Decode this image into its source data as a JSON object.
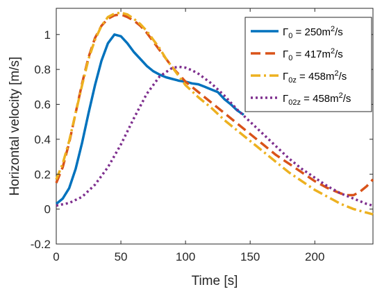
{
  "chart_data": {
    "type": "line",
    "title": "",
    "xlabel": "Time [s]",
    "ylabel": "Horizontal velocity [m/s]",
    "xlim": [
      0,
      245
    ],
    "ylim": [
      -0.2,
      1.15
    ],
    "xticks": [
      0,
      50,
      100,
      150,
      200
    ],
    "yticks": [
      -0.2,
      0,
      0.2,
      0.4,
      0.6,
      0.8,
      1
    ],
    "xtick_labels": [
      "0",
      "50",
      "100",
      "150",
      "200"
    ],
    "ytick_labels": [
      "-0.2",
      "0",
      "0.2",
      "0.4",
      "0.6",
      "0.8",
      "1"
    ],
    "grid": false,
    "legend_position": "top-right",
    "series": [
      {
        "name_parts": {
          "sym": "Γ",
          "sub": "0",
          "mid": " = 250m",
          "sup": "2",
          "end": "/s"
        },
        "color": "#0072BD",
        "style": "solid",
        "points": [
          [
            0,
            0.03
          ],
          [
            5,
            0.06
          ],
          [
            10,
            0.12
          ],
          [
            15,
            0.23
          ],
          [
            20,
            0.38
          ],
          [
            25,
            0.55
          ],
          [
            30,
            0.71
          ],
          [
            35,
            0.85
          ],
          [
            40,
            0.95
          ],
          [
            45,
            1.0
          ],
          [
            50,
            0.99
          ],
          [
            55,
            0.95
          ],
          [
            60,
            0.9
          ],
          [
            65,
            0.86
          ],
          [
            70,
            0.82
          ],
          [
            75,
            0.79
          ],
          [
            80,
            0.77
          ],
          [
            85,
            0.755
          ],
          [
            90,
            0.745
          ],
          [
            95,
            0.735
          ],
          [
            100,
            0.73
          ],
          [
            105,
            0.72
          ],
          [
            110,
            0.715
          ],
          [
            115,
            0.7
          ],
          [
            120,
            0.685
          ],
          [
            125,
            0.67
          ],
          [
            130,
            0.63
          ],
          [
            135,
            0.6
          ],
          [
            140,
            0.565
          ],
          [
            145,
            0.54
          ]
        ]
      },
      {
        "name_parts": {
          "sym": "Γ",
          "sub": "0",
          "mid": " = 417m",
          "sup": "2",
          "end": "/s"
        },
        "color": "#D95319",
        "style": "dash",
        "points": [
          [
            0,
            0.15
          ],
          [
            5,
            0.24
          ],
          [
            10,
            0.38
          ],
          [
            15,
            0.55
          ],
          [
            20,
            0.72
          ],
          [
            25,
            0.87
          ],
          [
            30,
            0.98
          ],
          [
            35,
            1.05
          ],
          [
            40,
            1.09
          ],
          [
            45,
            1.11
          ],
          [
            50,
            1.115
          ],
          [
            55,
            1.1
          ],
          [
            60,
            1.08
          ],
          [
            65,
            1.05
          ],
          [
            70,
            1.01
          ],
          [
            75,
            0.96
          ],
          [
            80,
            0.91
          ],
          [
            85,
            0.86
          ],
          [
            90,
            0.81
          ],
          [
            95,
            0.77
          ],
          [
            100,
            0.73
          ],
          [
            110,
            0.67
          ],
          [
            120,
            0.61
          ],
          [
            130,
            0.55
          ],
          [
            140,
            0.49
          ],
          [
            150,
            0.43
          ],
          [
            160,
            0.37
          ],
          [
            170,
            0.31
          ],
          [
            180,
            0.26
          ],
          [
            190,
            0.21
          ],
          [
            200,
            0.16
          ],
          [
            210,
            0.12
          ],
          [
            220,
            0.09
          ],
          [
            225,
            0.08
          ],
          [
            230,
            0.08
          ],
          [
            235,
            0.1
          ],
          [
            240,
            0.13
          ],
          [
            245,
            0.17
          ]
        ]
      },
      {
        "name_parts": {
          "sym": "Γ",
          "sub": "0z",
          "mid": " = 458m",
          "sup": "2",
          "end": "/s"
        },
        "color": "#EDB120",
        "style": "dashdot",
        "points": [
          [
            0,
            0.17
          ],
          [
            5,
            0.26
          ],
          [
            10,
            0.39
          ],
          [
            15,
            0.55
          ],
          [
            20,
            0.71
          ],
          [
            25,
            0.86
          ],
          [
            30,
            0.97
          ],
          [
            35,
            1.05
          ],
          [
            40,
            1.1
          ],
          [
            45,
            1.12
          ],
          [
            50,
            1.125
          ],
          [
            55,
            1.115
          ],
          [
            60,
            1.09
          ],
          [
            65,
            1.06
          ],
          [
            70,
            1.02
          ],
          [
            75,
            0.97
          ],
          [
            80,
            0.92
          ],
          [
            85,
            0.86
          ],
          [
            90,
            0.81
          ],
          [
            95,
            0.76
          ],
          [
            100,
            0.71
          ],
          [
            110,
            0.64
          ],
          [
            120,
            0.58
          ],
          [
            130,
            0.51
          ],
          [
            140,
            0.45
          ],
          [
            150,
            0.39
          ],
          [
            160,
            0.33
          ],
          [
            170,
            0.27
          ],
          [
            180,
            0.21
          ],
          [
            190,
            0.16
          ],
          [
            200,
            0.11
          ],
          [
            210,
            0.07
          ],
          [
            220,
            0.03
          ],
          [
            230,
            0.0
          ],
          [
            240,
            -0.02
          ],
          [
            245,
            -0.03
          ]
        ]
      },
      {
        "name_parts": {
          "sym": "Γ",
          "sub": "02z",
          "mid": " = 458m",
          "sup": "2",
          "end": "/s"
        },
        "color": "#7E2F8E",
        "style": "dot",
        "points": [
          [
            0,
            0.02
          ],
          [
            10,
            0.035
          ],
          [
            20,
            0.07
          ],
          [
            30,
            0.14
          ],
          [
            40,
            0.24
          ],
          [
            50,
            0.37
          ],
          [
            60,
            0.52
          ],
          [
            70,
            0.66
          ],
          [
            80,
            0.76
          ],
          [
            90,
            0.81
          ],
          [
            95,
            0.815
          ],
          [
            100,
            0.81
          ],
          [
            105,
            0.795
          ],
          [
            110,
            0.775
          ],
          [
            120,
            0.72
          ],
          [
            130,
            0.65
          ],
          [
            140,
            0.57
          ],
          [
            150,
            0.5
          ],
          [
            160,
            0.43
          ],
          [
            170,
            0.36
          ],
          [
            180,
            0.29
          ],
          [
            190,
            0.23
          ],
          [
            200,
            0.18
          ],
          [
            210,
            0.13
          ],
          [
            220,
            0.09
          ],
          [
            230,
            0.06
          ],
          [
            240,
            0.03
          ],
          [
            245,
            0.02
          ]
        ]
      }
    ]
  }
}
